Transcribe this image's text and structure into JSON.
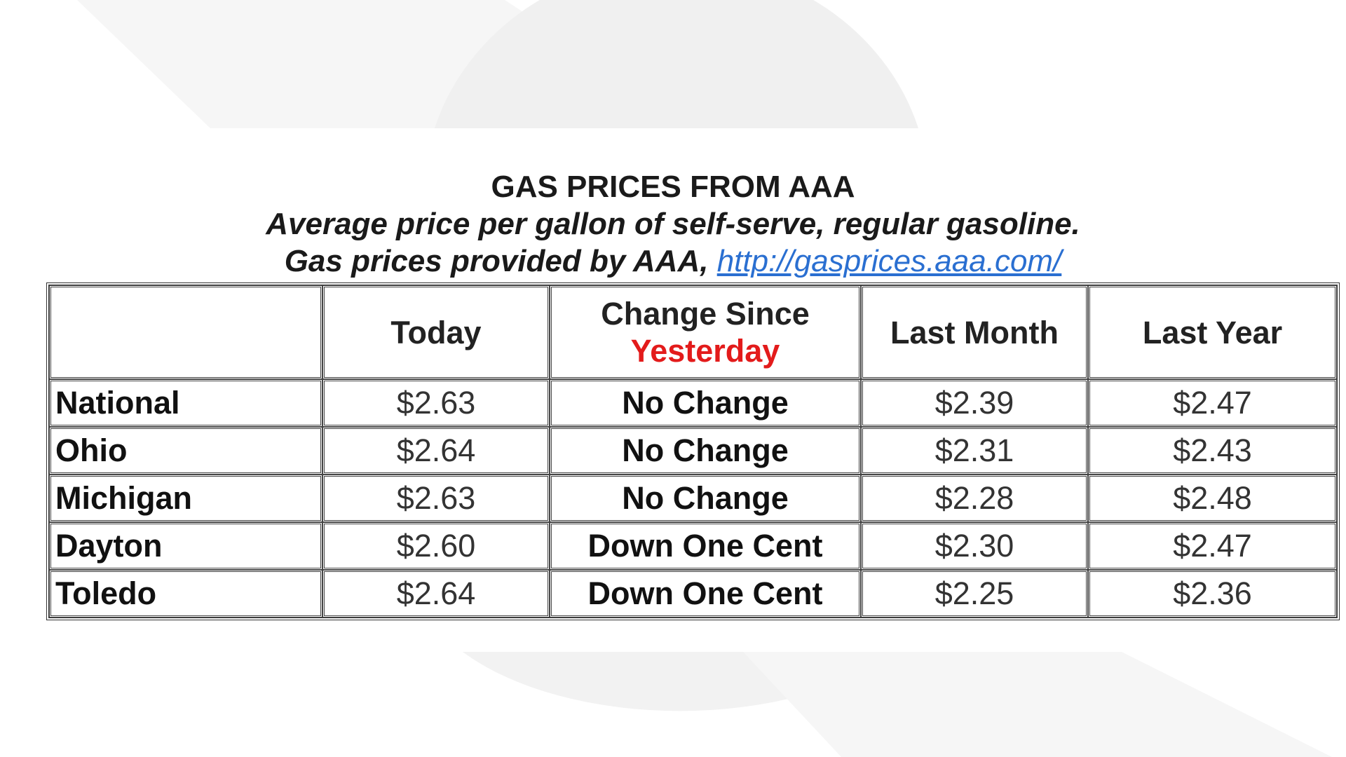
{
  "header": {
    "title": "GAS PRICES FROM AAA",
    "subtitle": "Average price per gallon of self-serve, regular gasoline.",
    "source": "Gas prices provided by AAA,",
    "link": "http://gasprices.aaa.com/"
  },
  "table": {
    "columns": [
      {
        "text": "Today"
      },
      {
        "text": "Change Since",
        "highlight": "Yesterday"
      },
      {
        "text": "Last Month"
      },
      {
        "text": "Last Year"
      }
    ],
    "rows": [
      [
        "National",
        "$2.63",
        "No Change",
        "$2.39",
        "$2.47"
      ],
      [
        "Ohio",
        "$2.64",
        "No Change",
        "$2.31",
        "$2.43"
      ],
      [
        "Michigan",
        "$2.63",
        "No Change",
        "$2.28",
        "$2.48"
      ],
      [
        "Dayton",
        "$2.60",
        "Down One Cent",
        "$2.30",
        "$2.47"
      ],
      [
        "Toledo",
        "$2.64",
        "Down One Cent",
        "$2.25",
        "$2.36"
      ]
    ]
  }
}
